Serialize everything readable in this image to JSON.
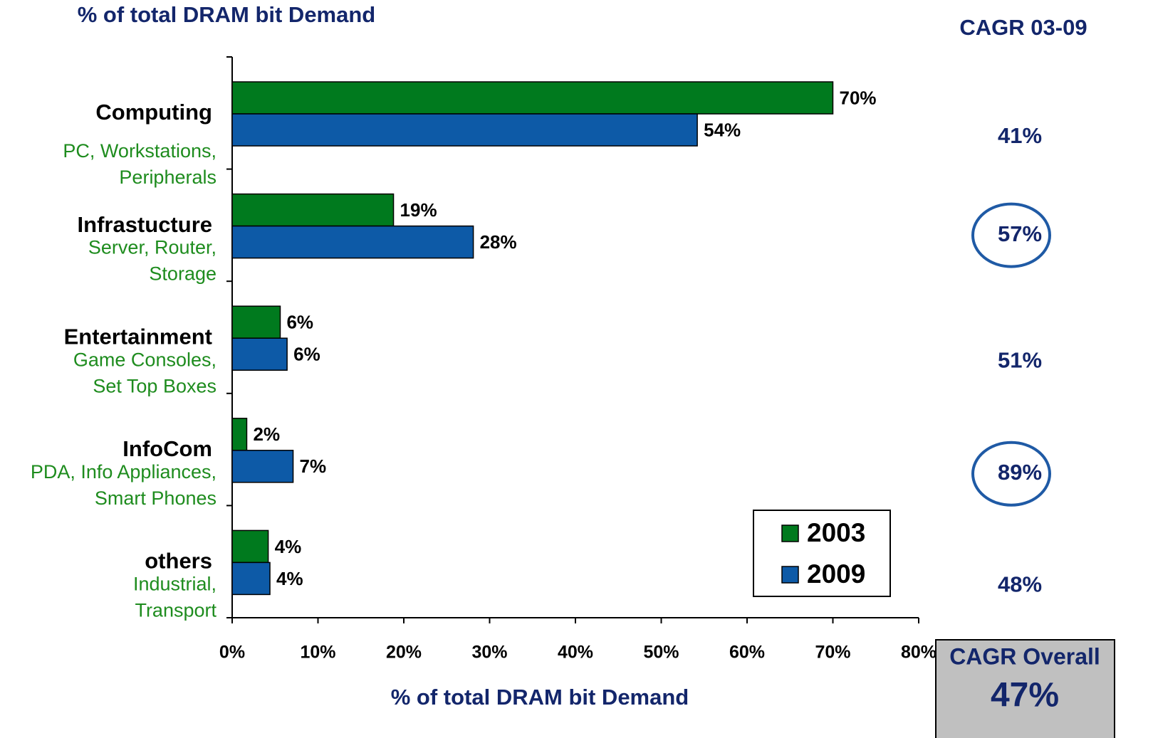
{
  "chart_data": {
    "type": "bar",
    "orientation": "horizontal",
    "title": "% of total DRAM bit Demand",
    "x_label": "% of total DRAM bit Demand",
    "categories": [
      "Computing",
      "Infrastucture",
      "Entertainment",
      "InfoCom",
      "others"
    ],
    "category_subtitles": [
      [
        "PC, Workstations,",
        "Peripherals"
      ],
      [
        "Server, Router,",
        "Storage"
      ],
      [
        "Game Consoles,",
        "Set Top Boxes"
      ],
      [
        "PDA, Info Appliances,",
        "Smart Phones"
      ],
      [
        "Industrial,",
        "Transport"
      ]
    ],
    "series": [
      {
        "name": "2003",
        "color": "#007a1e",
        "values": [
          70,
          18.8,
          5.6,
          1.7,
          4.2
        ],
        "value_labels": [
          "70%",
          "19%",
          "6%",
          "2%",
          "4%"
        ]
      },
      {
        "name": "2009",
        "color": "#0d5aa7",
        "values": [
          54.2,
          28.1,
          6.4,
          7.1,
          4.4
        ],
        "value_labels": [
          "54%",
          "28%",
          "6%",
          "7%",
          "4%"
        ]
      }
    ],
    "xlim": [
      0,
      80
    ],
    "xticks": [
      {
        "value": 0,
        "label": "0%"
      },
      {
        "value": 10,
        "label": "10%"
      },
      {
        "value": 20,
        "label": "20%"
      },
      {
        "value": 30,
        "label": "30%"
      },
      {
        "value": 40,
        "label": "40%"
      },
      {
        "value": 50,
        "label": "50%"
      },
      {
        "value": 60,
        "label": "60%"
      },
      {
        "value": 70,
        "label": "70%"
      },
      {
        "value": 80,
        "label": "80%"
      }
    ],
    "legend": "lower right",
    "cagr": {
      "title": "CAGR 03-09",
      "values": [
        41,
        57,
        51,
        89,
        48
      ],
      "value_labels": [
        "41%",
        "57%",
        "51%",
        "89%",
        "48%"
      ],
      "circled": [
        false,
        true,
        false,
        true,
        false
      ],
      "overall_title": "CAGR Overall",
      "overall_value": 47,
      "overall_label": "47%"
    }
  }
}
